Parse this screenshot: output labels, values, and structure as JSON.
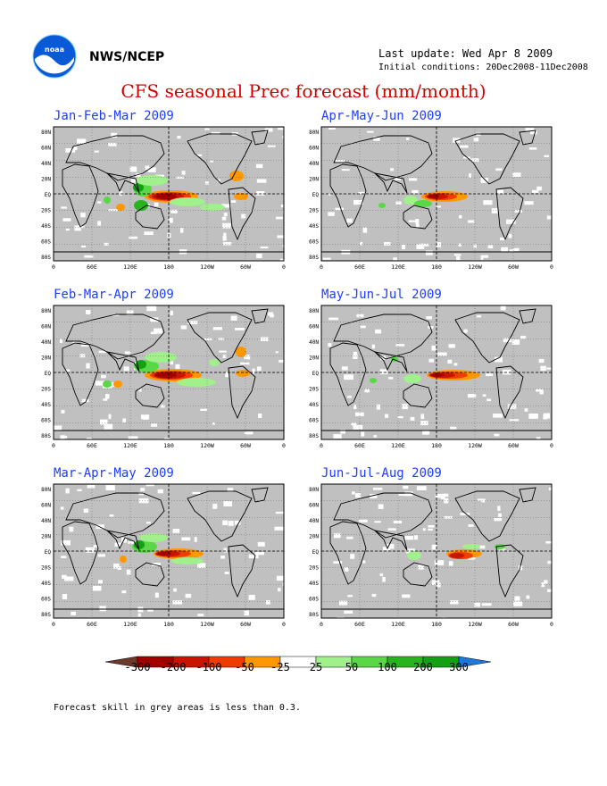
{
  "header": {
    "org": "NWS/NCEP",
    "last_update": "Last update: Wed Apr 8 2009",
    "initial_conditions": "Initial conditions: 20Dec2008-11Dec2008",
    "title": "CFS seasonal Prec forecast (mm/month)"
  },
  "panels": [
    {
      "id": "jfm",
      "title": "Jan-Feb-Mar 2009"
    },
    {
      "id": "amj",
      "title": "Apr-May-Jun 2009"
    },
    {
      "id": "fma",
      "title": "Feb-Mar-Apr 2009"
    },
    {
      "id": "mjj",
      "title": "May-Jun-Jul 2009"
    },
    {
      "id": "mam",
      "title": "Mar-Apr-May 2009"
    },
    {
      "id": "jja",
      "title": "Jun-Jul-Aug 2009"
    }
  ],
  "axes": {
    "lat_labels": [
      "80N",
      "60N",
      "40N",
      "20N",
      "EQ",
      "20S",
      "40S",
      "60S",
      "80S"
    ],
    "lon_labels": [
      "0",
      "60E",
      "120E",
      "180",
      "120W",
      "60W",
      "0"
    ]
  },
  "legend": {
    "labels": [
      "-300",
      "-200",
      "-100",
      "-50",
      "-25",
      "25",
      "50",
      "100",
      "200",
      "300"
    ],
    "colors": [
      "#6b3a2a",
      "#a00000",
      "#c81400",
      "#f03c00",
      "#ff9800",
      "#ffffff",
      "#a0f08c",
      "#5ad746",
      "#28b41e",
      "#14a014",
      "#1e78dc"
    ]
  },
  "colors": {
    "skill_grey": "#c0c0c0",
    "title_red": "#d40000",
    "panel_title_blue": "#1f3dff"
  },
  "footnote": "Forecast skill in grey areas is less than 0.3."
}
